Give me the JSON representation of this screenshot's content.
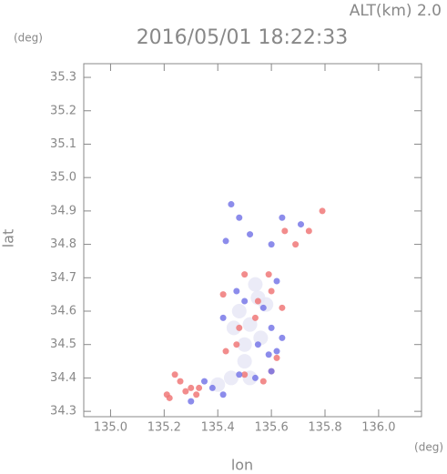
{
  "chart_data": {
    "type": "scatter",
    "title": "2016/05/01 18:22:33",
    "annotation": "ALT(km) 2.0",
    "y_unit": "(deg)",
    "x_unit": "(deg)",
    "x_label": "lon",
    "y_label": "lat",
    "xlim": [
      134.9,
      136.16
    ],
    "ylim": [
      34.284,
      35.341
    ],
    "xticks": [
      {
        "value": 135.0,
        "label": "135.0"
      },
      135.2,
      135.4,
      135.6,
      135.8,
      {
        "value": 136.0,
        "label": "136.0"
      }
    ],
    "yticks": [
      34.3,
      34.4,
      34.5,
      34.6,
      34.7,
      34.8,
      34.9,
      {
        "value": 35.0,
        "label": "35.0"
      },
      35.1,
      35.2,
      35.3
    ],
    "series": [
      {
        "color": "#e8e8f6",
        "x": [
          135.48,
          135.52,
          135.56,
          135.5,
          135.46,
          135.58,
          135.54,
          135.5,
          135.45,
          135.4,
          135.52,
          135.55
        ],
        "y": [
          34.6,
          34.56,
          34.52,
          34.5,
          34.55,
          34.62,
          34.68,
          34.45,
          34.4,
          34.38,
          34.4,
          34.64
        ]
      },
      {
        "color": "#f07878",
        "x": [
          135.21,
          135.22,
          135.24,
          135.26,
          135.28,
          135.32,
          135.3,
          135.47,
          135.48,
          135.5,
          135.57,
          135.6,
          135.62,
          135.54,
          135.59,
          135.6,
          135.55,
          135.65,
          135.69,
          135.74,
          135.79,
          135.42,
          135.5,
          135.64,
          135.43,
          135.33
        ],
        "y": [
          34.35,
          34.34,
          34.41,
          34.39,
          34.36,
          34.35,
          34.37,
          34.5,
          34.55,
          34.41,
          34.39,
          34.42,
          34.46,
          34.58,
          34.71,
          34.66,
          34.63,
          34.84,
          34.8,
          34.84,
          34.9,
          34.65,
          34.71,
          34.61,
          34.48,
          34.37
        ]
      },
      {
        "color": "#7878e8",
        "x": [
          135.38,
          135.42,
          135.48,
          135.54,
          135.59,
          135.6,
          135.62,
          135.64,
          135.57,
          135.5,
          135.47,
          135.62,
          135.43,
          135.48,
          135.52,
          135.6,
          135.64,
          135.71,
          135.45,
          135.42,
          135.55,
          135.3,
          135.35,
          135.6
        ],
        "y": [
          34.37,
          34.35,
          34.41,
          34.4,
          34.47,
          34.42,
          34.48,
          34.52,
          34.61,
          34.63,
          34.66,
          34.69,
          34.81,
          34.88,
          34.83,
          34.8,
          34.88,
          34.86,
          34.92,
          34.58,
          34.5,
          34.33,
          34.39,
          34.55
        ]
      }
    ]
  }
}
